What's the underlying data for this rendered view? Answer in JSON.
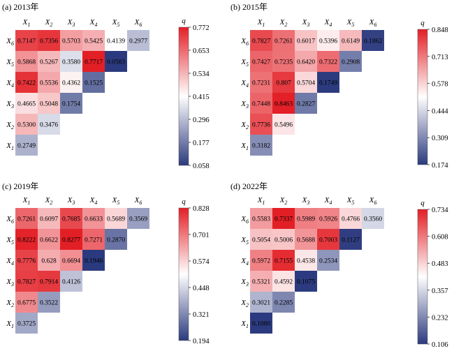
{
  "chart_data": [
    {
      "type": "heatmap",
      "title": "(a) 2013年",
      "x_labels": [
        "X1",
        "X2",
        "X3",
        "X4",
        "X5",
        "X6"
      ],
      "y_labels": [
        "X6",
        "X5",
        "X4",
        "X3",
        "X2",
        "X1"
      ],
      "values": [
        [
          0.7147,
          0.7356,
          0.5703,
          0.5425,
          0.4139,
          0.2977
        ],
        [
          0.5868,
          0.5267,
          0.358,
          0.7717,
          0.0583
        ],
        [
          0.7422,
          0.5536,
          0.4362,
          0.1525
        ],
        [
          0.4665,
          0.5048,
          0.1754
        ],
        [
          0.53,
          0.3476
        ],
        [
          0.2749
        ]
      ],
      "value_labels": [
        [
          "0.7147",
          "0.7356",
          "0.5703",
          "0.5425",
          "0.4139",
          "0.2977"
        ],
        [
          "0.5868",
          "0.5267",
          "0.3580",
          "0.7717",
          "0.0583"
        ],
        [
          "0.7422",
          "0.5536",
          "0.4362",
          "0.1525"
        ],
        [
          "0.4665",
          "0.5048",
          "0.1754"
        ],
        [
          "0.5300",
          "0.3476"
        ],
        [
          "0.2749"
        ]
      ],
      "colorbar": {
        "label": "q",
        "min": 0.058,
        "max": 0.772,
        "ticks": [
          "0.772",
          "0.653",
          "0.534",
          "0.415",
          "0.296",
          "0.177",
          "0.058"
        ]
      }
    },
    {
      "type": "heatmap",
      "title": "(b) 2015年",
      "x_labels": [
        "X1",
        "X2",
        "X3",
        "X4",
        "X5",
        "X6"
      ],
      "y_labels": [
        "X6",
        "X5",
        "X4",
        "X3",
        "X2",
        "X1"
      ],
      "values": [
        [
          0.7827,
          0.7261,
          0.6017,
          0.5396,
          0.6149,
          0.1862
        ],
        [
          0.7427,
          0.7235,
          0.642,
          0.7322,
          0.2908
        ],
        [
          0.7231,
          0.807,
          0.5704,
          0.1749
        ],
        [
          0.7448,
          0.8463,
          0.2827
        ],
        [
          0.7736,
          0.5496
        ],
        [
          0.3182
        ]
      ],
      "value_labels": [
        [
          "0.7827",
          "0.7261",
          "0.6017",
          "0.5396",
          "0.6149",
          "0.1862"
        ],
        [
          "0.7427",
          "0.7235",
          "0.6420",
          "0.7322",
          "0.2908"
        ],
        [
          "0.7231",
          "0.807",
          "0.5704",
          "0.1749"
        ],
        [
          "0.7448",
          "0.8463",
          "0.2827"
        ],
        [
          "0.7736",
          "0.5496"
        ],
        [
          "0.3182"
        ]
      ],
      "colorbar": {
        "label": "q",
        "min": 0.174,
        "max": 0.848,
        "ticks": [
          "0.848",
          "0.713",
          "0.578",
          "0.444",
          "0.309",
          "0.174"
        ]
      }
    },
    {
      "type": "heatmap",
      "title": "(c) 2019年",
      "x_labels": [
        "X1",
        "X2",
        "X3",
        "X4",
        "X5",
        "X6"
      ],
      "y_labels": [
        "X6",
        "X5",
        "X4",
        "X3",
        "X2",
        "X1"
      ],
      "values": [
        [
          0.7261,
          0.6097,
          0.7685,
          0.6633,
          0.5689,
          0.3569
        ],
        [
          0.8222,
          0.6622,
          0.8277,
          0.7271,
          0.287
        ],
        [
          0.7776,
          0.628,
          0.6694,
          0.1946
        ],
        [
          0.7827,
          0.7914,
          0.4126
        ],
        [
          0.6775,
          0.3522
        ],
        [
          0.3725
        ]
      ],
      "value_labels": [
        [
          "0.7261",
          "0.6097",
          "0.7685",
          "0.6633",
          "0.5689",
          "0.3569"
        ],
        [
          "0.8222",
          "0.6622",
          "0.8277",
          "0.7271",
          "0.2870"
        ],
        [
          "0.7776",
          "0.628",
          "0.6694",
          "0.1946"
        ],
        [
          "0.7827",
          "0.7914",
          "0.4126"
        ],
        [
          "0.6775",
          "0.3522"
        ],
        [
          "0.3725"
        ]
      ],
      "colorbar": {
        "label": "q",
        "min": 0.194,
        "max": 0.828,
        "ticks": [
          "0.828",
          "0.701",
          "0.574",
          "0.448",
          "0.321",
          "0.194"
        ]
      }
    },
    {
      "type": "heatmap",
      "title": "(d) 2022年",
      "x_labels": [
        "X1",
        "X2",
        "X3",
        "X4",
        "X5",
        "X6"
      ],
      "y_labels": [
        "X6",
        "X5",
        "X4",
        "X3",
        "X2",
        "X1"
      ],
      "values": [
        [
          0.5583,
          0.7337,
          0.5989,
          0.5926,
          0.4766,
          0.356
        ],
        [
          0.5054,
          0.5006,
          0.5688,
          0.7003,
          0.1127
        ],
        [
          0.5972,
          0.7155,
          0.4538,
          0.2534
        ],
        [
          0.5321,
          0.4592,
          0.1075
        ],
        [
          0.3021,
          0.2285
        ],
        [
          0.108
        ]
      ],
      "value_labels": [
        [
          "0.5583",
          "0.7337",
          "0.5989",
          "0.5926",
          "0.4766",
          "0.3560"
        ],
        [
          "0.5054",
          "0.5006",
          "0.5688",
          "0.7003",
          "0.1127"
        ],
        [
          "0.5972",
          "0.7155",
          "0.4538",
          "0.2534"
        ],
        [
          "0.5321",
          "0.4592",
          "0.1075"
        ],
        [
          "0.3021",
          "0.2285"
        ],
        [
          "0.1080"
        ]
      ],
      "colorbar": {
        "label": "q",
        "min": 0.106,
        "max": 0.734,
        "ticks": [
          "0.734",
          "0.608",
          "0.483",
          "0.357",
          "0.232",
          "0.106"
        ]
      }
    }
  ],
  "colors": {
    "low": "#2b3a7e",
    "mid": "#ffffff",
    "high": "#e31f26"
  }
}
